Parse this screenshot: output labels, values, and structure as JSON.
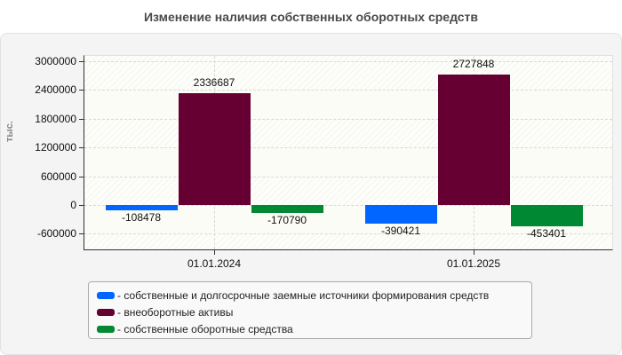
{
  "title": "Изменение наличия собственных оборотных средств",
  "y_axis_title": "тыс.",
  "colors": {
    "series1": "#0066ff",
    "series2": "#660033",
    "series3": "#008833"
  },
  "chart_data": {
    "type": "bar",
    "title": "Изменение наличия собственных оборотных средств",
    "xlabel": "",
    "ylabel": "тыс.",
    "ylim": [
      -900000,
      3100000
    ],
    "yticks": [
      3000000,
      2400000,
      1800000,
      1200000,
      600000,
      0,
      -600000
    ],
    "ytick_labels": [
      "3000000",
      "2400000",
      "1800000",
      "1200000",
      "600000",
      "0",
      "-600000"
    ],
    "categories": [
      "01.01.2024",
      "01.01.2025"
    ],
    "series": [
      {
        "name": "- собственные и долгосрочные заемные источники формирования средств",
        "color": "#0066ff",
        "values": [
          -108478,
          -390421
        ]
      },
      {
        "name": "- внеоборотные активы",
        "color": "#660033",
        "values": [
          2336687,
          2727848
        ]
      },
      {
        "name": "- собственные оборотные средства",
        "color": "#008833",
        "values": [
          -170790,
          -453401
        ]
      }
    ],
    "data_labels": [
      [
        "-108478",
        "-390421"
      ],
      [
        "2336687",
        "2727848"
      ],
      [
        "-170790",
        "-453401"
      ]
    ],
    "grid": true,
    "legend_position": "bottom"
  },
  "legend": [
    {
      "label": "- собственные и долгосрочные заемные источники формирования средств"
    },
    {
      "label": "- внеоборотные активы"
    },
    {
      "label": "- собственные оборотные средства"
    }
  ]
}
